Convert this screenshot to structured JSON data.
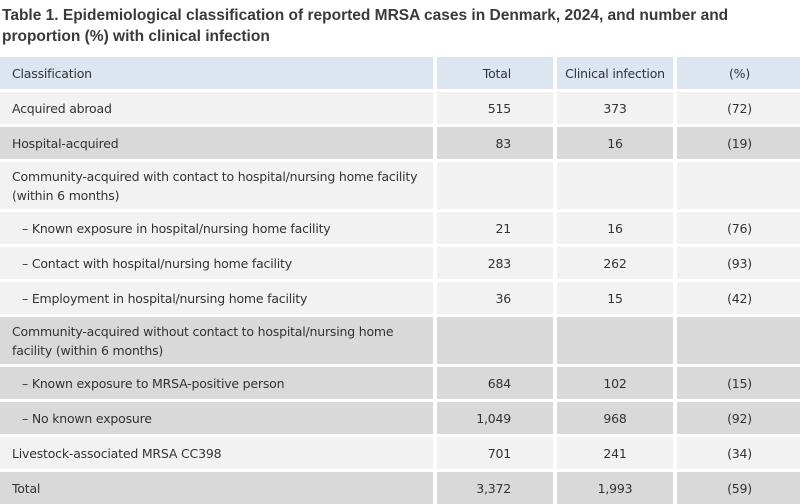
{
  "title": "Table 1. Epidemiological classification of reported MRSA cases in Denmark, 2024, and number and proportion (%) with clinical infection",
  "headers": [
    "Classification",
    "Total",
    "Clinical infection",
    "(%)"
  ],
  "rows": [
    {
      "label": "Acquired abroad",
      "total": "515",
      "clinical": "373",
      "pct": "(72)",
      "shade": "light",
      "indent": false,
      "tall": false
    },
    {
      "label": "Hospital-acquired",
      "total": "83",
      "clinical": "16",
      "pct": "(19)",
      "shade": "dark",
      "indent": false,
      "tall": false
    },
    {
      "label": "Community-acquired with contact to hospital/nursing home facility (within 6 months)",
      "total": "",
      "clinical": "",
      "pct": "",
      "shade": "light",
      "indent": false,
      "tall": true
    },
    {
      "label": "– Known exposure in hospital/nursing home facility",
      "total": "21",
      "clinical": "16",
      "pct": "(76)",
      "shade": "light",
      "indent": true,
      "tall": false
    },
    {
      "label": "– Contact with hospital/nursing home facility",
      "total": "283",
      "clinical": "262",
      "pct": "(93)",
      "shade": "light",
      "indent": true,
      "tall": false
    },
    {
      "label": "– Employment in hospital/nursing home facility",
      "total": "36",
      "clinical": "15",
      "pct": "(42)",
      "shade": "light",
      "indent": true,
      "tall": false
    },
    {
      "label": "Community-acquired without contact to hospital/nursing home facility (within 6 months)",
      "total": "",
      "clinical": "",
      "pct": "",
      "shade": "dark",
      "indent": false,
      "tall": true
    },
    {
      "label": "– Known exposure to MRSA-positive person",
      "total": "684",
      "clinical": "102",
      "pct": "(15)",
      "shade": "dark",
      "indent": true,
      "tall": false
    },
    {
      "label": "– No known exposure",
      "total": "1,049",
      "clinical": "968",
      "pct": "(92)",
      "shade": "dark",
      "indent": true,
      "tall": false
    },
    {
      "label": "Livestock-associated MRSA CC398",
      "total": "701",
      "clinical": "241",
      "pct": "(34)",
      "shade": "light",
      "indent": false,
      "tall": false
    },
    {
      "label": "Total",
      "total": "3,372",
      "clinical": "1,993",
      "pct": "(59)",
      "shade": "dark",
      "indent": false,
      "tall": false
    }
  ],
  "colors": {
    "header": "#dce6f1",
    "light": "#f2f2f2",
    "dark": "#d9d9d9",
    "text": "#333333"
  }
}
